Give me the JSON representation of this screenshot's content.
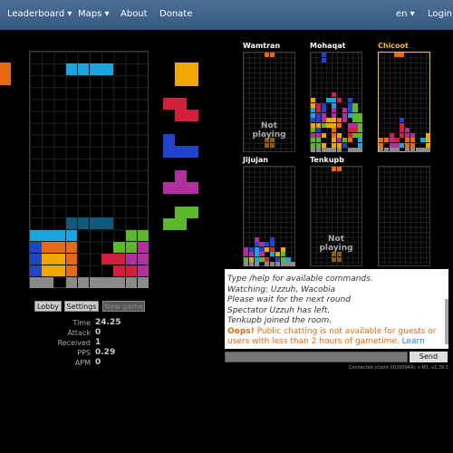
{
  "nav": {
    "left": [
      "Leaderboard ▾",
      "Maps ▾",
      "About",
      "Donate"
    ],
    "right": [
      "en ▾",
      "Login"
    ]
  },
  "buttons": {
    "lobby": "Lobby",
    "settings": "Settings",
    "new_game": "New game"
  },
  "stats": [
    {
      "label": "Time",
      "value": "24.25"
    },
    {
      "label": "Attack",
      "value": "0"
    },
    {
      "label": "Received",
      "value": "1"
    },
    {
      "label": "PPS",
      "value": "0.29"
    },
    {
      "label": "APM",
      "value": "0"
    }
  ],
  "players": [
    {
      "name": "Wamtran",
      "status": "Not playing"
    },
    {
      "name": "Mohaqat"
    },
    {
      "name": "Chicoot"
    },
    {
      "name": "Jijujan"
    },
    {
      "name": "Tenkupb",
      "status": "Not playing"
    },
    {}
  ],
  "chat": {
    "lines": [
      "Type /help for available commands.",
      "Watching: Uzzuh, Wacobia",
      "Please wait for the next round",
      "Spectator Uzzuh has left.",
      "Tenkupb joined the room."
    ],
    "notice": {
      "label": "Oops!",
      "text": "Public chatting is not available for guests or users with less than 2 hours of gametime.",
      "link": "Learn more"
    },
    "send": "Send"
  },
  "footer": "Connected (client 00200949), s:M1, v1.39.5"
}
